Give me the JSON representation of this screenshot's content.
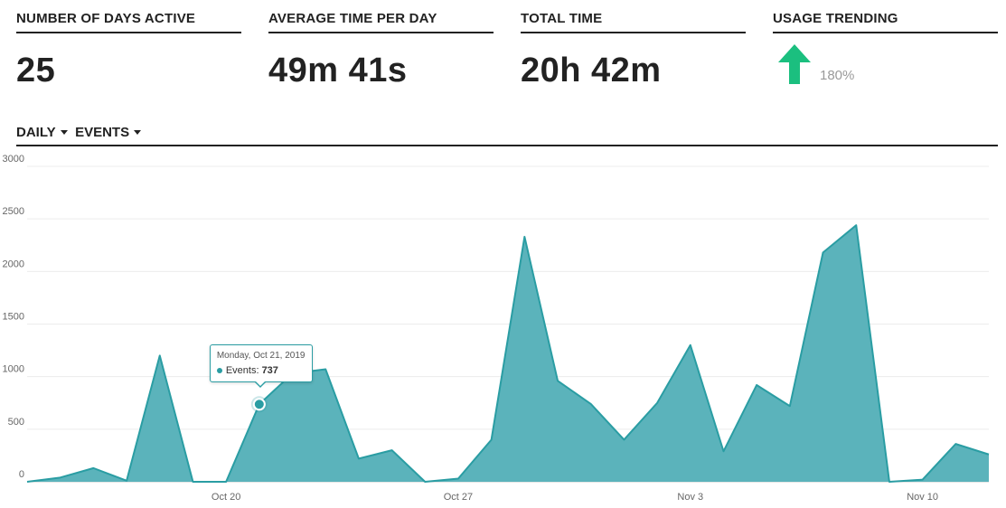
{
  "stats": [
    {
      "label": "NUMBER OF DAYS ACTIVE",
      "value": "25"
    },
    {
      "label": "AVERAGE TIME PER DAY",
      "value": "49m 41s"
    },
    {
      "label": "TOTAL TIME",
      "value": "20h 42m"
    }
  ],
  "trend": {
    "label": "USAGE TRENDING",
    "percent": "180%",
    "direction": "up",
    "color": "#1bbf7f",
    "icon": "arrow-up-icon"
  },
  "controls": {
    "interval": "DAILY",
    "metric": "EVENTS"
  },
  "tooltip": {
    "date": "Monday, Oct 21, 2019",
    "series_label": "Events:",
    "value": "737"
  },
  "chart_data": {
    "type": "area",
    "x": [
      "Oct 14",
      "Oct 15",
      "Oct 16",
      "Oct 17",
      "Oct 18",
      "Oct 19",
      "Oct 20",
      "Oct 21",
      "Oct 22",
      "Oct 23",
      "Oct 24",
      "Oct 25",
      "Oct 26",
      "Oct 27",
      "Oct 28",
      "Oct 29",
      "Oct 30",
      "Oct 31",
      "Nov 1",
      "Nov 2",
      "Nov 3",
      "Nov 4",
      "Nov 5",
      "Nov 6",
      "Nov 7",
      "Nov 8",
      "Nov 9",
      "Nov 10",
      "Nov 11",
      "Nov 12"
    ],
    "series": [
      {
        "values": [
          0,
          40,
          130,
          10,
          1200,
          0,
          0,
          737,
          1030,
          1070,
          220,
          300,
          0,
          30,
          400,
          2330,
          960,
          740,
          400,
          750,
          1300,
          290,
          920,
          720,
          2180,
          2440,
          0,
          20,
          360,
          260
        ]
      }
    ],
    "x_tick_labels": [
      "Oct 20",
      "Oct 27",
      "Nov 3",
      "Nov 10"
    ],
    "y_ticks": [
      0,
      500,
      1000,
      1500,
      2000,
      2500,
      3000
    ],
    "ylim": [
      0,
      3000
    ],
    "grid": true,
    "highlight_index": 7,
    "fill_color": "#5bb3bb",
    "line_color": "#2a9da3"
  }
}
